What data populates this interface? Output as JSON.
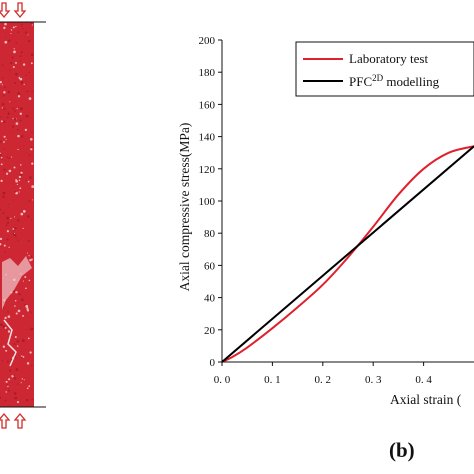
{
  "panel_label": "(b)",
  "chart_data": {
    "type": "line",
    "xlabel": "Axial strain (",
    "ylabel": "Axial compressive stress(MPa)",
    "xlim": [
      0.0,
      0.5
    ],
    "ylim": [
      0,
      200
    ],
    "x_ticks": [
      "0. 0",
      "0. 1",
      "0. 2",
      "0. 3",
      "0. 4"
    ],
    "y_ticks": [
      "0",
      "20",
      "40",
      "60",
      "80",
      "100",
      "120",
      "140",
      "160",
      "180",
      "200"
    ],
    "legend_position": "top-right",
    "series": [
      {
        "name": "Laboratory test",
        "color": "#e0202c",
        "x": [
          0.0,
          0.02,
          0.05,
          0.1,
          0.15,
          0.2,
          0.25,
          0.3,
          0.35,
          0.4,
          0.45,
          0.5
        ],
        "y": [
          0,
          3,
          9,
          21,
          34,
          48,
          65,
          84,
          104,
          120,
          130,
          134
        ]
      },
      {
        "name": "PFC2D modelling",
        "name_main": "PFC",
        "name_sup": "2D",
        "name_tail": " modelling",
        "color": "#000000",
        "x": [
          0.0,
          0.5
        ],
        "y": [
          0,
          134
        ]
      }
    ]
  },
  "specimen": {
    "fill_color": "#cc2733",
    "arrow_color": "#d42a2a"
  }
}
